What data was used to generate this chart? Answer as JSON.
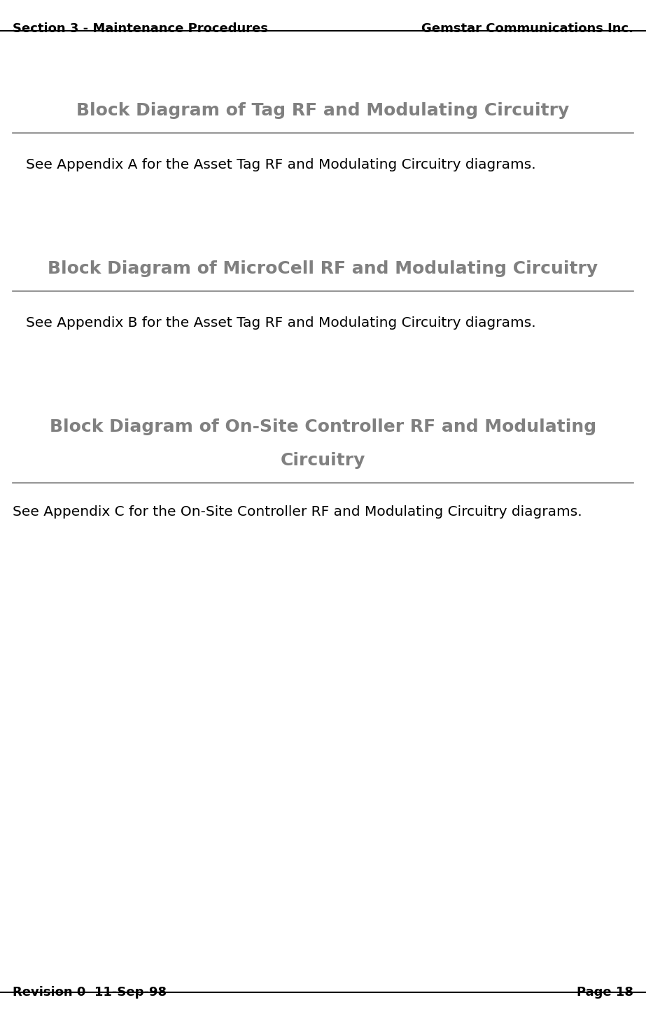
{
  "bg_color": "#ffffff",
  "header_left": "Section 3 - Maintenance Procedures",
  "header_right": "Gemstar Communications Inc.",
  "footer_left": "Revision 0  11-Sep-98",
  "footer_right": "Page 18",
  "header_font_size": 13,
  "footer_font_size": 13,
  "section1_title": "Block Diagram of Tag RF and Modulating Circuitry",
  "section1_body": "See Appendix A for the Asset Tag RF and Modulating Circuitry diagrams.",
  "section2_title": "Block Diagram of MicroCell RF and Modulating Circuitry",
  "section2_body": "See Appendix B for the Asset Tag RF and Modulating Circuitry diagrams.",
  "section3_title_line1": "Block Diagram of On-Site Controller RF and Modulating",
  "section3_title_line2": "Circuitry",
  "section3_body": "See Appendix C for the On-Site Controller RF and Modulating Circuitry diagrams.",
  "title_font_size": 18,
  "body_font_size": 14.5,
  "title_color": "#808080",
  "body_color": "#000000",
  "header_color": "#000000",
  "footer_color": "#000000"
}
